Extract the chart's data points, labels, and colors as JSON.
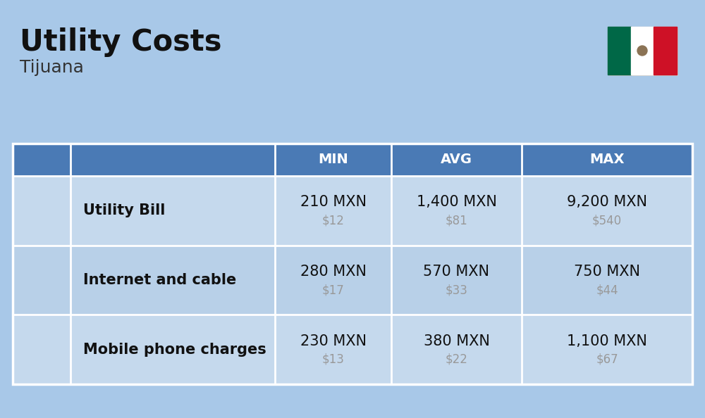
{
  "title": "Utility Costs",
  "subtitle": "Tijuana",
  "background_color": "#a8c8e8",
  "header_bg_color": "#4a7ab5",
  "header_text_color": "#ffffff",
  "row_bg_color_1": "#c5d9ed",
  "row_bg_color_2": "#b8d0e8",
  "table_line_color": "#ffffff",
  "col_headers": [
    "MIN",
    "AVG",
    "MAX"
  ],
  "rows": [
    {
      "label": "Utility Bill",
      "min_mxn": "210 MXN",
      "min_usd": "$12",
      "avg_mxn": "1,400 MXN",
      "avg_usd": "$81",
      "max_mxn": "9,200 MXN",
      "max_usd": "$540"
    },
    {
      "label": "Internet and cable",
      "min_mxn": "280 MXN",
      "min_usd": "$17",
      "avg_mxn": "570 MXN",
      "avg_usd": "$33",
      "max_mxn": "750 MXN",
      "max_usd": "$44"
    },
    {
      "label": "Mobile phone charges",
      "min_mxn": "230 MXN",
      "min_usd": "$13",
      "avg_mxn": "380 MXN",
      "avg_usd": "$22",
      "max_mxn": "1,100 MXN",
      "max_usd": "$67"
    }
  ],
  "flag_colors": [
    "#006847",
    "#ffffff",
    "#ce1126"
  ],
  "title_fontsize": 30,
  "subtitle_fontsize": 18,
  "header_fontsize": 14,
  "label_fontsize": 15,
  "value_fontsize": 15,
  "usd_fontsize": 12,
  "usd_color": "#999999",
  "text_color": "#111111"
}
